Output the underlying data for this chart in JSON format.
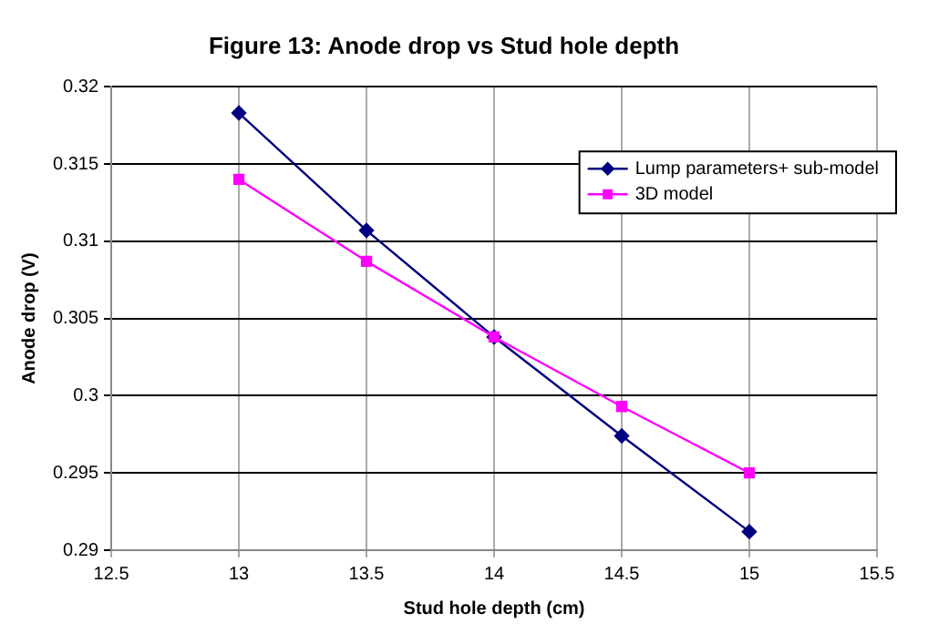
{
  "chart_data": {
    "type": "line",
    "title": "Figure 13: Anode drop vs Stud hole depth",
    "xlabel": "Stud hole depth (cm)",
    "ylabel": "Anode drop (V)",
    "x": [
      13,
      13.5,
      14,
      14.5,
      15
    ],
    "series": [
      {
        "name": "Lump parameters+ sub-model",
        "color": "#000080",
        "marker": "diamond",
        "values": [
          0.3183,
          0.3107,
          0.3038,
          0.2974,
          0.2912
        ]
      },
      {
        "name": "3D model",
        "color": "#ff00ff",
        "marker": "square",
        "values": [
          0.314,
          0.3087,
          0.3038,
          0.2993,
          0.295
        ]
      }
    ],
    "xlim": [
      12.5,
      15.5
    ],
    "xticks": [
      12.5,
      13,
      13.5,
      14,
      14.5,
      15,
      15.5
    ],
    "ylim": [
      0.29,
      0.32
    ],
    "yticks": [
      0.29,
      0.295,
      0.3,
      0.305,
      0.31,
      0.315,
      0.32
    ],
    "grid": true,
    "legend": "top right",
    "line_style": "solid"
  }
}
